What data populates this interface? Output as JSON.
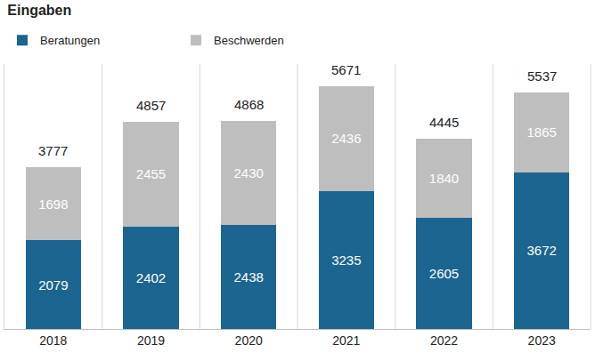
{
  "chart_data": {
    "type": "bar",
    "title": "Eingaben",
    "categories": [
      "2018",
      "2019",
      "2020",
      "2021",
      "2022",
      "2023"
    ],
    "series": [
      {
        "name": "Beratungen",
        "color": "#1b6590",
        "values": [
          2079,
          2402,
          2438,
          3235,
          2605,
          3672
        ]
      },
      {
        "name": "Beschwerden",
        "color": "#bebebe",
        "values": [
          1698,
          2455,
          2430,
          2436,
          1840,
          1865
        ]
      }
    ],
    "totals": [
      3777,
      4857,
      4868,
      5671,
      4445,
      5537
    ],
    "ylim": [
      0,
      6200
    ],
    "stacked": true,
    "data_labels": true,
    "tick_labels": "x",
    "grid": false,
    "legend": "top left"
  }
}
